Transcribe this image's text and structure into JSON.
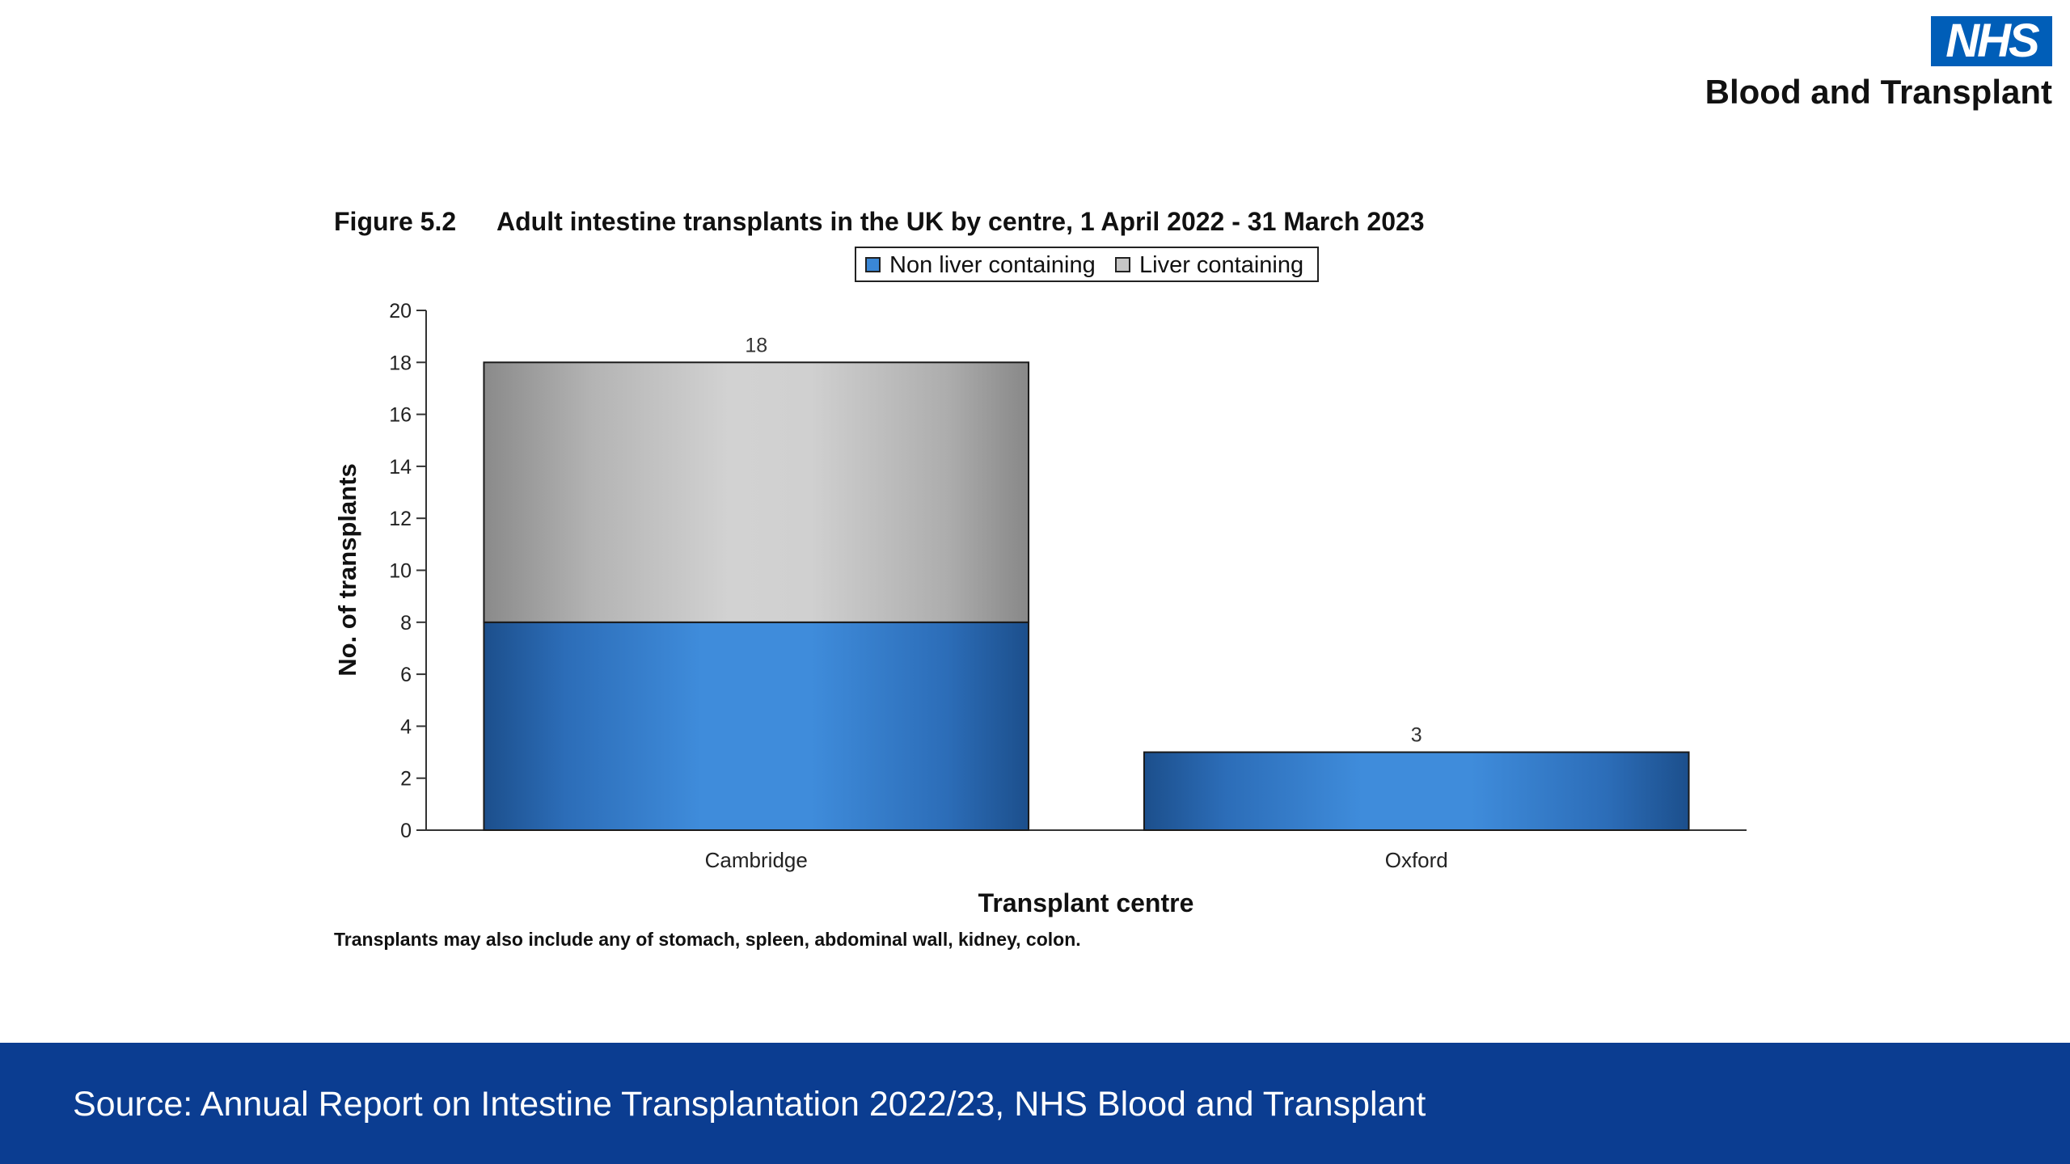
{
  "logo": {
    "mark": "NHS",
    "name": "Blood and Transplant"
  },
  "chart_data": {
    "type": "bar",
    "stacked": true,
    "figure_label": "Figure 5.2",
    "title": "Adult intestine transplants in the UK by centre, 1 April 2022 - 31 March 2023",
    "xlabel": "Transplant centre",
    "ylabel": "No. of transplants",
    "ylim": [
      0,
      20
    ],
    "yticks": [
      0,
      2,
      4,
      6,
      8,
      10,
      12,
      14,
      16,
      18,
      20
    ],
    "categories": [
      "Cambridge",
      "Oxford"
    ],
    "series": [
      {
        "name": "Non liver containing",
        "values": [
          8,
          3
        ],
        "color": "#3a87d6"
      },
      {
        "name": "Liver containing",
        "values": [
          10,
          0
        ],
        "color": "#c6c6c6"
      }
    ],
    "totals": [
      18,
      3
    ],
    "legend_position": "top",
    "grid": false,
    "note": "Transplants may also include any of stomach, spleen, abdominal wall, kidney, colon."
  },
  "footer": {
    "source": "Source: Annual Report on Intestine Transplantation 2022/23, NHS Blood and Transplant"
  }
}
